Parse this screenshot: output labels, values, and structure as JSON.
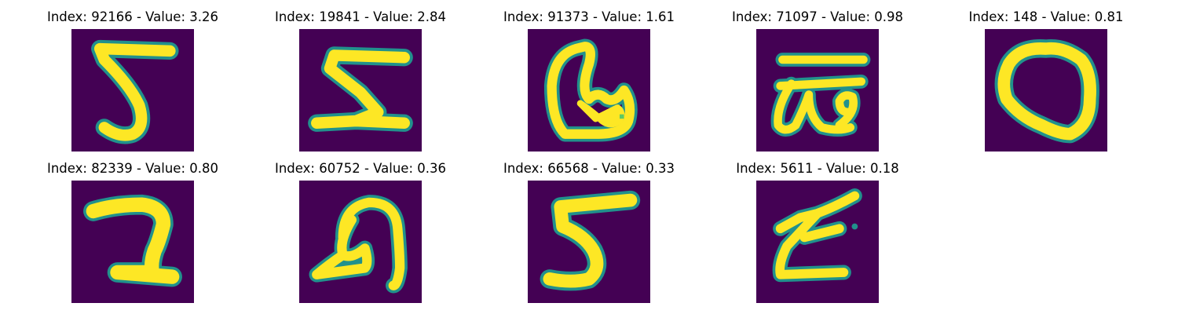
{
  "colors": {
    "background": "#440154",
    "stroke_edge": "#21918c",
    "stroke_mid": "#5ec962",
    "stroke_core": "#fde725"
  },
  "panels": [
    {
      "index": "92166",
      "value": "3.26",
      "title": "Index: 92166 - Value: 3.26",
      "glyph": "digit-5"
    },
    {
      "index": "19841",
      "value": "2.84",
      "title": "Index: 19841 - Value: 2.84",
      "glyph": "digit-z-like"
    },
    {
      "index": "91373",
      "value": "1.61",
      "title": "Index: 91373 - Value: 1.61",
      "glyph": "loop-with-blob"
    },
    {
      "index": "71097",
      "value": "0.98",
      "title": "Index: 71097 - Value: 0.98",
      "glyph": "omega-with-bar"
    },
    {
      "index": "148",
      "value": "0.81",
      "title": "Index: 148 - Value: 0.81",
      "glyph": "digit-0-like"
    },
    {
      "index": "82339",
      "value": "0.80",
      "title": "Index: 82339 - Value: 0.80",
      "glyph": "reversed-2"
    },
    {
      "index": "60752",
      "value": "0.36",
      "title": "Index: 60752 - Value: 0.36",
      "glyph": "curly-n"
    },
    {
      "index": "66568",
      "value": "0.33",
      "title": "Index: 66568 - Value: 0.33",
      "glyph": "digit-5"
    },
    {
      "index": "5611",
      "value": "0.18",
      "title": "Index: 5611 - Value: 0.18",
      "glyph": "z-like"
    }
  ]
}
